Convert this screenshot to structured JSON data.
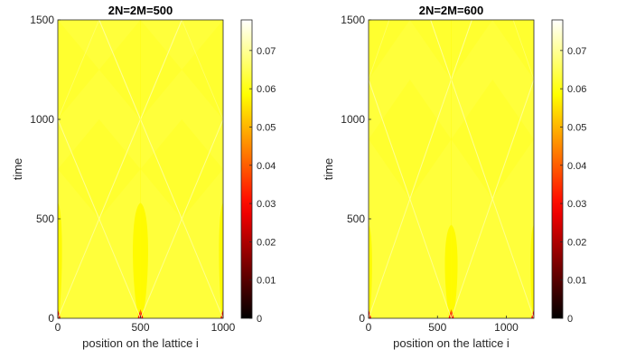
{
  "chart_data": [
    {
      "type": "heatmap",
      "title": "2N=2M=500",
      "xlabel": "position on the lattice i",
      "ylabel": "time",
      "xlim": [
        0,
        1000
      ],
      "ylim": [
        0,
        1500
      ],
      "xticks": [
        0,
        500,
        1000
      ],
      "yticks": [
        0,
        500,
        1000,
        1500
      ],
      "colormap": "hot",
      "clim": [
        0,
        0.078
      ],
      "colorbar_ticks": [
        0,
        0.01,
        0.02,
        0.03,
        0.04,
        0.05,
        0.06,
        0.07
      ],
      "background_value": 0.063,
      "features": {
        "hot_lobes": [
          {
            "x_center": 0,
            "half_width": 30,
            "t_top": 580,
            "value": 0.058
          },
          {
            "x_center": 500,
            "half_width": 55,
            "t_top": 580,
            "value": 0.058
          },
          {
            "x_center": 1000,
            "half_width": 30,
            "t_top": 580,
            "value": 0.058
          }
        ],
        "front_sources_x": [
          0,
          500,
          1000
        ],
        "front_speed": 2.0,
        "diamond_vertices": [
          [
            250,
            500
          ],
          [
            750,
            500
          ],
          [
            500,
            1000
          ],
          [
            0,
            1000
          ],
          [
            1000,
            1000
          ],
          [
            250,
            1500
          ],
          [
            750,
            1500
          ]
        ]
      }
    },
    {
      "type": "heatmap",
      "title": "2N=2M=600",
      "xlabel": "position on the lattice i",
      "ylabel": "time",
      "xlim": [
        0,
        1200
      ],
      "ylim": [
        0,
        1500
      ],
      "xticks": [
        0,
        500,
        1000
      ],
      "yticks": [
        0,
        500,
        1000,
        1500
      ],
      "colormap": "hot",
      "clim": [
        0,
        0.078
      ],
      "colorbar_ticks": [
        0,
        0.01,
        0.02,
        0.03,
        0.04,
        0.05,
        0.06,
        0.07
      ],
      "background_value": 0.063,
      "features": {
        "hot_lobes": [
          {
            "x_center": 0,
            "half_width": 30,
            "t_top": 470,
            "value": 0.058
          },
          {
            "x_center": 600,
            "half_width": 55,
            "t_top": 470,
            "value": 0.058
          },
          {
            "x_center": 1200,
            "half_width": 30,
            "t_top": 470,
            "value": 0.058
          }
        ],
        "front_sources_x": [
          0,
          600,
          1200
        ],
        "front_speed": 2.0,
        "diamond_vertices": [
          [
            300,
            600
          ],
          [
            900,
            600
          ],
          [
            600,
            1200
          ],
          [
            0,
            1200
          ],
          [
            1200,
            1200
          ]
        ]
      }
    }
  ]
}
